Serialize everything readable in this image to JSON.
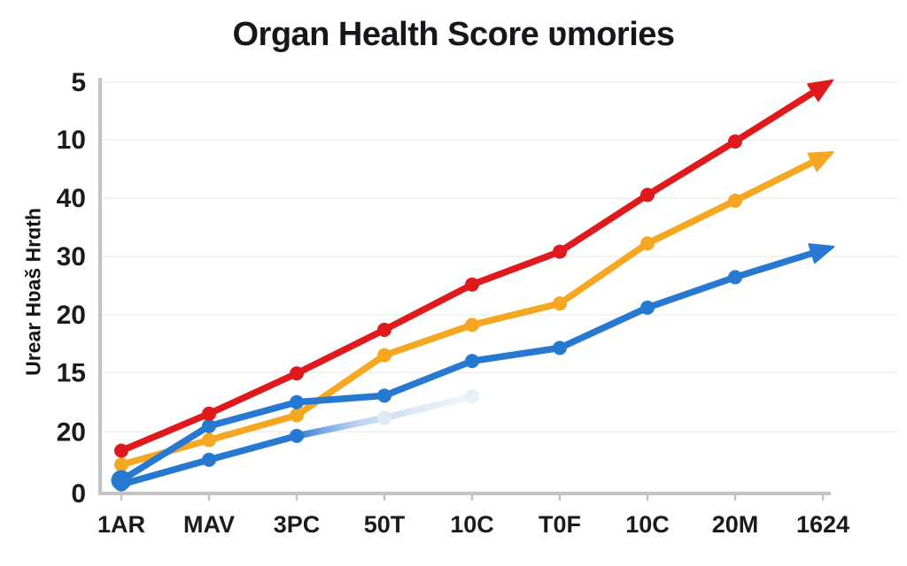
{
  "title": "Organ Health Score ʋmories",
  "y_axis_title": "Urear Hʋaš Hrɑth",
  "chart_data": {
    "type": "line",
    "title": "Organ Health Score ʋmories",
    "xlabel": "",
    "ylabel": "Urear Hʋaš Hrɑth",
    "legend_position": "none",
    "grid": true,
    "ylim": [
      0,
      50
    ],
    "categories": [
      "1AR",
      "MAV",
      "3PC",
      "50T",
      "10C",
      "T0F",
      "10C",
      "20M",
      "1624"
    ],
    "y_ticks": [
      {
        "label": "0",
        "value": 0
      },
      {
        "label": "20",
        "value": 7.5
      },
      {
        "label": "15",
        "value": 14.7
      },
      {
        "label": "20",
        "value": 21.7
      },
      {
        "label": "30",
        "value": 28.8
      },
      {
        "label": "40",
        "value": 35.9
      },
      {
        "label": "10",
        "value": 43.0
      },
      {
        "label": "5",
        "value": 50.0
      }
    ],
    "series": [
      {
        "name": "faded-blue-line",
        "color": "#2778d0",
        "fade": true,
        "arrow": false,
        "values": [
          1.1,
          4.1,
          7.0,
          9.2,
          11.8
        ],
        "point_fills": [
          "#2778d0",
          "#2778d0",
          "#2778d0",
          "#dfe9f5",
          "#e9f0f8"
        ]
      },
      {
        "name": "amber-line",
        "color": "#f5a722",
        "arrow": true,
        "values": [
          3.5,
          6.5,
          9.5,
          16.8,
          20.5,
          23.1,
          30.4,
          35.6,
          40.9
        ]
      },
      {
        "name": "blue-line",
        "color": "#2778d0",
        "arrow": true,
        "first_marker_large": true,
        "values": [
          1.6,
          8.2,
          11.1,
          11.9,
          16.1,
          17.7,
          22.6,
          26.3,
          29.6
        ]
      },
      {
        "name": "red-line",
        "color": "#e0191c",
        "arrow": true,
        "values": [
          5.2,
          9.7,
          14.6,
          19.9,
          25.4,
          29.4,
          36.3,
          42.8,
          49.5
        ]
      }
    ],
    "style": {
      "axis_color": "#c3c3c3",
      "grid_color": "#f3f1ee",
      "tick_text_color": "#1b1b1b",
      "line_width": 7.5,
      "marker_radius": 8
    }
  }
}
